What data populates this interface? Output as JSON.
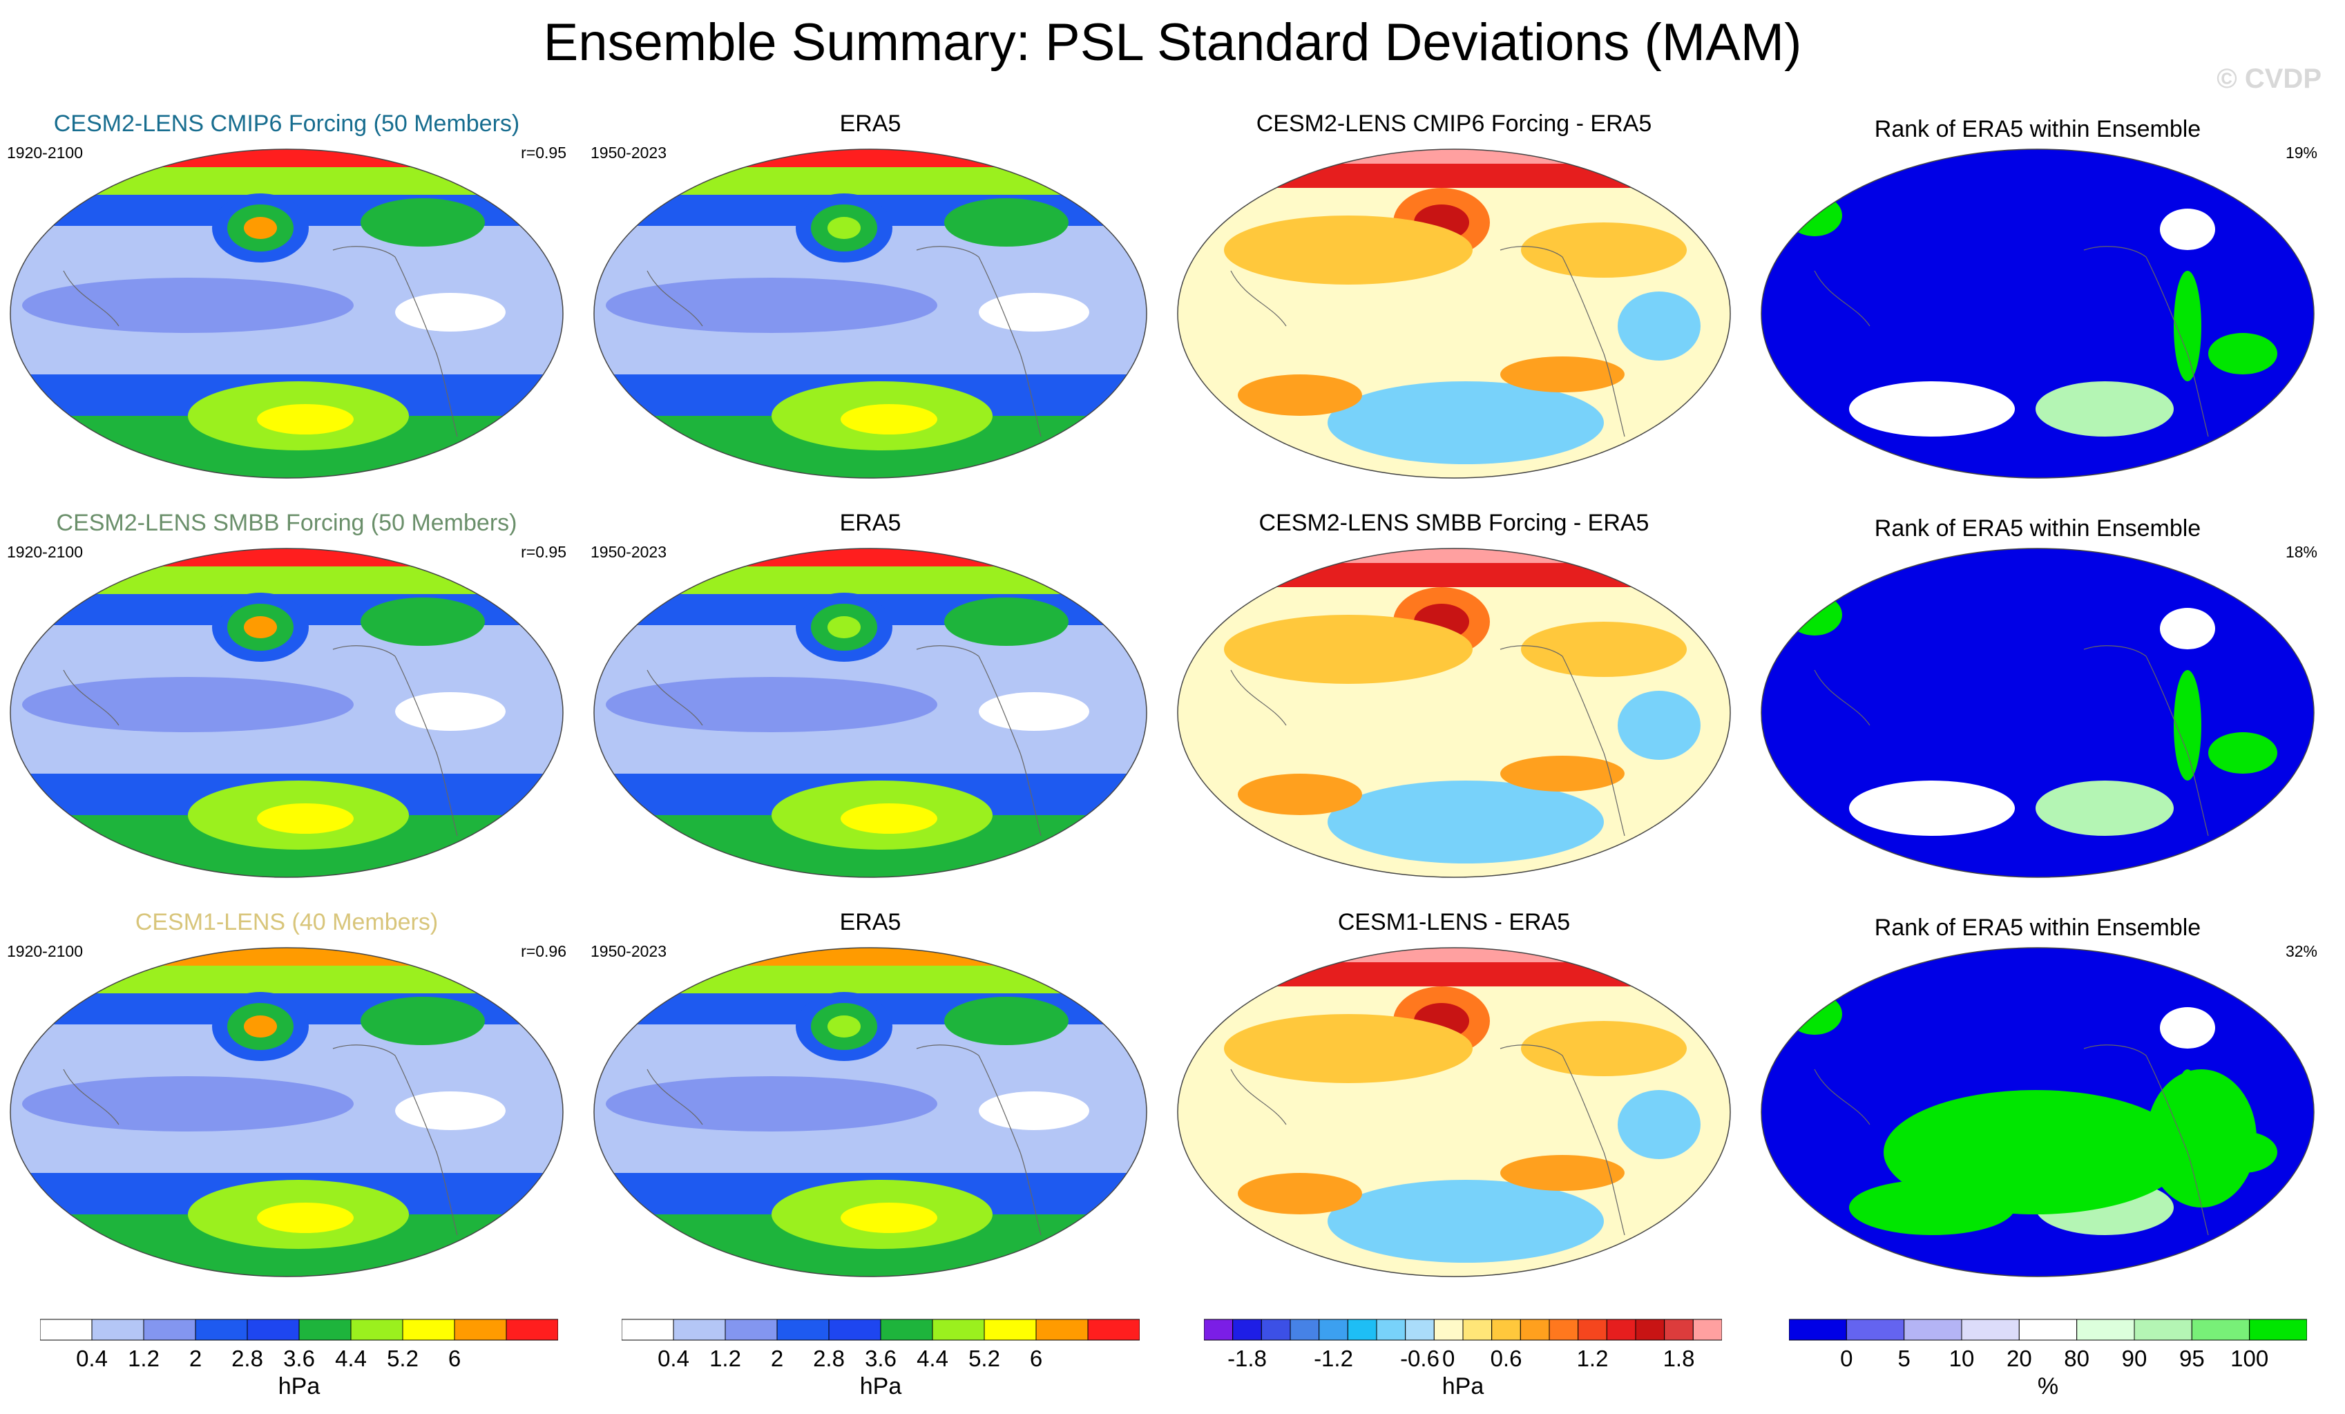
{
  "header": {
    "title": "Ensemble Summary: PSL Standard Deviations (MAM)",
    "watermark": "© CVDP"
  },
  "colors": {
    "std_scale": [
      "#ffffff",
      "#b4c6f6",
      "#8396f0",
      "#1e5af0",
      "#1e46f0",
      "#1eb43c",
      "#9bf01e",
      "#ffff00",
      "#ff9b00",
      "#ff1e1e"
    ],
    "diff_scale": [
      "#7b1ee6",
      "#1e1ee6",
      "#3c50e6",
      "#4682e6",
      "#3ca0f0",
      "#1ebef5",
      "#78d2fa",
      "#aadcfa",
      "#fffac8",
      "#ffe678",
      "#ffc83c",
      "#ffa01e",
      "#ff781e",
      "#f5461e",
      "#e61e1e",
      "#c81414",
      "#dc3c3c",
      "#ffa0a0"
    ],
    "rank_scale": [
      "#0000e6",
      "#6464f0",
      "#b4b4f5",
      "#dcdcfa",
      "#ffffff",
      "#dcffdc",
      "#b4f5b4",
      "#78f078",
      "#00e600"
    ],
    "cvdp_1": "#176d8f",
    "cvdp_2": "#6a8f6a",
    "cvdp_3": "#d8c57a"
  },
  "rows": [
    {
      "model": {
        "title": "CESM2-LENS CMIP6 Forcing (50 Members)",
        "years": "1920-2100",
        "r": "r=0.95",
        "color": "#176d8f"
      },
      "obs": {
        "title": "ERA5",
        "years": "1950-2023"
      },
      "diff": {
        "title": "CESM2-LENS CMIP6 Forcing - ERA5"
      },
      "rank": {
        "title": "Rank of ERA5 within Ensemble",
        "pct": "19%"
      }
    },
    {
      "model": {
        "title": "CESM2-LENS SMBB Forcing (50 Members)",
        "years": "1920-2100",
        "r": "r=0.95",
        "color": "#6a8f6a"
      },
      "obs": {
        "title": "ERA5",
        "years": "1950-2023"
      },
      "diff": {
        "title": "CESM2-LENS SMBB Forcing - ERA5"
      },
      "rank": {
        "title": "Rank of ERA5 within Ensemble",
        "pct": "18%"
      }
    },
    {
      "model": {
        "title": "CESM1-LENS (40 Members)",
        "years": "1920-2100",
        "r": "r=0.96",
        "color": "#d8c57a"
      },
      "obs": {
        "title": "ERA5",
        "years": "1950-2023"
      },
      "diff": {
        "title": "CESM1-LENS - ERA5"
      },
      "rank": {
        "title": "Rank of ERA5 within Ensemble",
        "pct": "32%"
      }
    }
  ],
  "colorbars": {
    "std": {
      "ticks": [
        "0.4",
        "1.2",
        "2",
        "2.8",
        "3.6",
        "4.4",
        "5.2",
        "6"
      ],
      "unit": "hPa"
    },
    "std2": {
      "ticks": [
        "0.4",
        "1.2",
        "2",
        "2.8",
        "3.6",
        "4.4",
        "5.2",
        "6"
      ],
      "unit": "hPa"
    },
    "diff": {
      "ticks": [
        "-1.8",
        "-1.2",
        "-0.6",
        "0",
        "0.6",
        "1.2",
        "1.8"
      ],
      "unit": "hPa"
    },
    "rank": {
      "ticks": [
        "0",
        "5",
        "10",
        "20",
        "80",
        "90",
        "95",
        "100"
      ],
      "unit": "%"
    }
  }
}
